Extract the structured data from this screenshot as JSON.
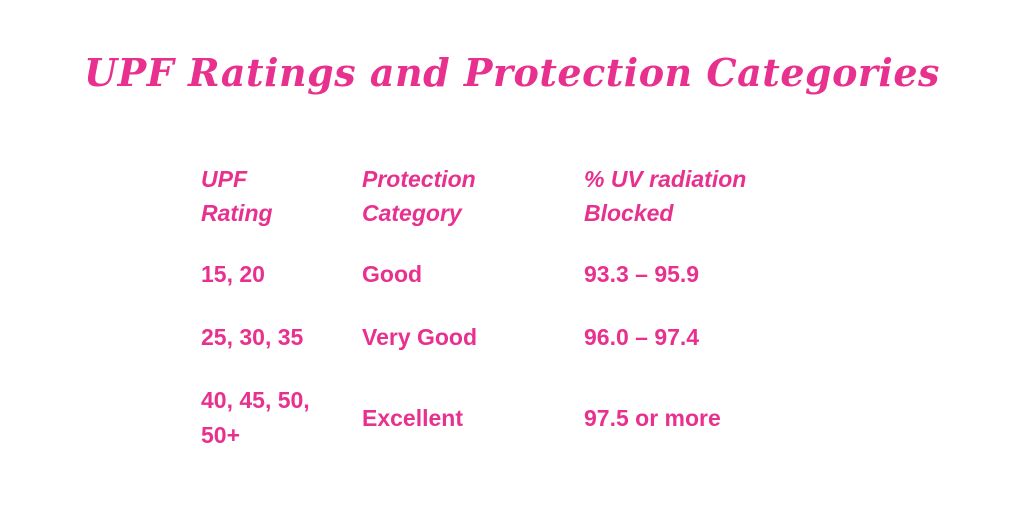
{
  "title": "UPF Ratings and Protection Categories",
  "colors": {
    "text": "#e8318f",
    "background": "#ffffff"
  },
  "table": {
    "headers": [
      [
        "UPF",
        "Rating"
      ],
      [
        "Protection",
        "Category"
      ],
      [
        "% UV radiation",
        "Blocked"
      ]
    ],
    "rows": [
      {
        "rating": [
          "15, 20"
        ],
        "category": "Good",
        "blocked": "93.3 – 95.9"
      },
      {
        "rating": [
          "25, 30, 35"
        ],
        "category": "Very Good",
        "blocked": "96.0 – 97.4"
      },
      {
        "rating": [
          "40, 45, 50,",
          "50+"
        ],
        "category": "Excellent",
        "blocked": "97.5 or more"
      }
    ]
  }
}
